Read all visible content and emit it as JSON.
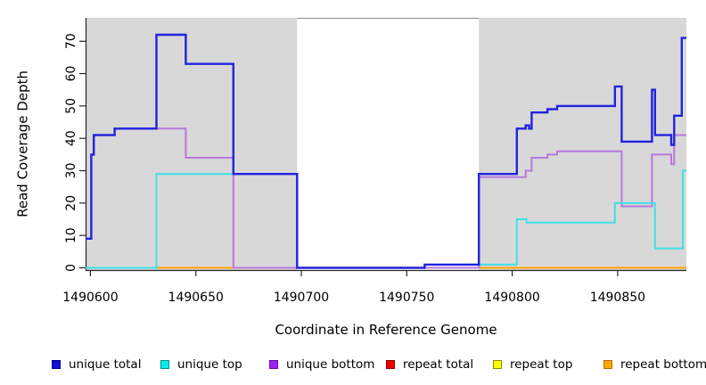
{
  "chart_data": {
    "type": "line",
    "subtype": "step-after",
    "title": "",
    "xlabel": "Coordinate in Reference Genome",
    "ylabel": "Read Coverage Depth",
    "xlim": [
      1490597.7,
      1490882.6
    ],
    "ylim": [
      0,
      77
    ],
    "x_ticks": [
      1490600,
      1490650,
      1490700,
      1490750,
      1490800,
      1490850
    ],
    "y_ticks": [
      0,
      10,
      20,
      30,
      40,
      50,
      60,
      70
    ],
    "grid": false,
    "axis_color": "#262626",
    "plot_border_top_color": "#8a8a8a",
    "shaded_regions": {
      "color": "#d8d8d8",
      "x_ranges": [
        [
          1490597.7,
          1490698.0
        ],
        [
          1490784.2,
          1490882.6
        ]
      ]
    },
    "series": [
      {
        "name": "repeat total",
        "color": "#ee0000",
        "width": 2,
        "points": [
          [
            1490597.7,
            0
          ]
        ]
      },
      {
        "name": "repeat top",
        "color": "#ffff00",
        "width": 2,
        "points": [
          [
            1490597.7,
            0
          ]
        ]
      },
      {
        "name": "repeat bottom",
        "color": "#ffa500",
        "width": 2,
        "points": [
          [
            1490597.7,
            0
          ]
        ]
      },
      {
        "name": "unique bottom",
        "color": "#b877dd",
        "width": 2,
        "points": [
          [
            1490597.7,
            9
          ],
          [
            1490600.4,
            35
          ],
          [
            1490601.6,
            41
          ],
          [
            1490611.5,
            43
          ],
          [
            1490645.2,
            34
          ],
          [
            1490667.8,
            0
          ],
          [
            1490784.2,
            28
          ],
          [
            1490806.4,
            30
          ],
          [
            1490809.2,
            34
          ],
          [
            1490816.7,
            35
          ],
          [
            1490821.3,
            36
          ],
          [
            1490851.9,
            19
          ],
          [
            1490866.3,
            35
          ],
          [
            1490875.4,
            32
          ],
          [
            1490876.8,
            41
          ]
        ]
      },
      {
        "name": "unique top",
        "color": "#3fe0e6",
        "width": 2,
        "points": [
          [
            1490597.7,
            0
          ],
          [
            1490631.3,
            29
          ],
          [
            1490698.0,
            0
          ],
          [
            1490758.5,
            1
          ],
          [
            1490802.2,
            15
          ],
          [
            1490806.8,
            14
          ],
          [
            1490848.7,
            20
          ],
          [
            1490867.7,
            6
          ],
          [
            1490880.9,
            30
          ]
        ]
      },
      {
        "name": "unique total",
        "color": "#2222e0",
        "width": 2.4,
        "points": [
          [
            1490597.7,
            9
          ],
          [
            1490600.4,
            35
          ],
          [
            1490601.6,
            41
          ],
          [
            1490611.5,
            43
          ],
          [
            1490631.3,
            72
          ],
          [
            1490645.2,
            63
          ],
          [
            1490667.8,
            29
          ],
          [
            1490698.0,
            0
          ],
          [
            1490758.5,
            1
          ],
          [
            1490784.2,
            29
          ],
          [
            1490802.2,
            43
          ],
          [
            1490806.4,
            44
          ],
          [
            1490808.0,
            43
          ],
          [
            1490809.2,
            48
          ],
          [
            1490816.7,
            49
          ],
          [
            1490821.3,
            50
          ],
          [
            1490848.7,
            56
          ],
          [
            1490851.9,
            39
          ],
          [
            1490866.3,
            55
          ],
          [
            1490867.7,
            41
          ],
          [
            1490875.4,
            38
          ],
          [
            1490876.8,
            47
          ],
          [
            1490880.4,
            71
          ]
        ]
      }
    ]
  },
  "legend": {
    "items": [
      {
        "label": "unique total",
        "fill": "#0f0fd6",
        "border": "#00008b"
      },
      {
        "label": "unique top",
        "fill": "#00eeee",
        "border": "#008b8b"
      },
      {
        "label": "unique bottom",
        "fill": "#a020f0",
        "border": "#6a0dad"
      },
      {
        "label": "repeat total",
        "fill": "#ee0000",
        "border": "#8b0000"
      },
      {
        "label": "repeat top",
        "fill": "#ffff00",
        "border": "#8b8b00"
      },
      {
        "label": "repeat bottom",
        "fill": "#ffa500",
        "border": "#b86b00"
      }
    ]
  }
}
